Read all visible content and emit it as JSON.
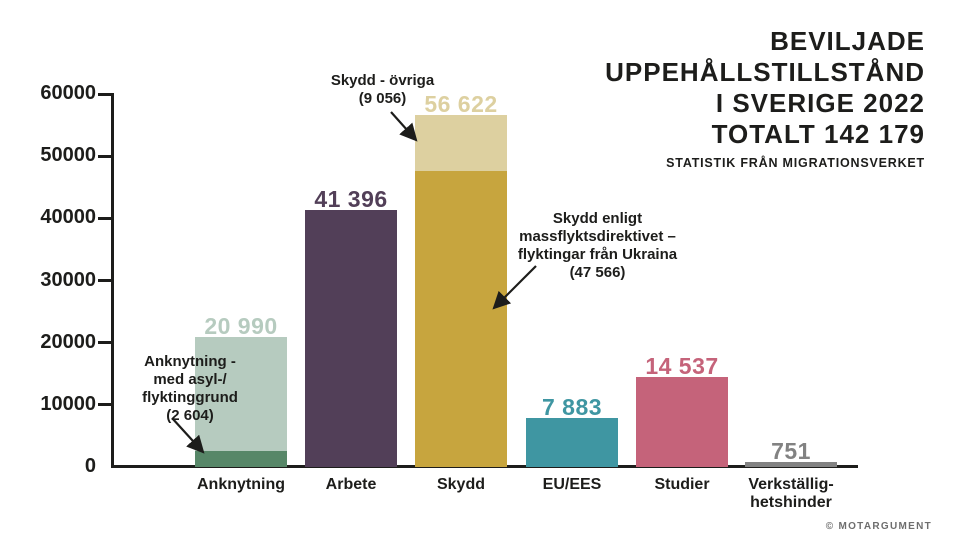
{
  "title": {
    "lines": [
      "BEVILJADE",
      "UPPEHÅLLSTILLSTÅND",
      "I SVERIGE 2022",
      "TOTALT 142 179"
    ],
    "subtitle": "STATISTIK FRÅN MIGRATIONSVERKET"
  },
  "credit": "© MOTARGUMENT",
  "colors": {
    "ink": "#1d1d1b",
    "sage": "#b6cbbf",
    "dark_green": "#578768",
    "purple": "#523f58",
    "tan": "#ddd0a0",
    "gold": "#c7a53e",
    "teal": "#3f96a2",
    "rose": "#c5637a",
    "gray": "#828282"
  },
  "chart_data": {
    "type": "bar",
    "title": "BEVILJADE UPPEHÅLLSTILLSTÅND I SVERIGE 2022 TOTALT 142 179",
    "source": "STATISTIK FRÅN MIGRATIONSVERKET",
    "total": 142179,
    "ylim": [
      0,
      60000
    ],
    "yticks": [
      0,
      10000,
      20000,
      30000,
      40000,
      50000,
      60000
    ],
    "ytick_labels": [
      "0",
      "10000",
      "20000",
      "30000",
      "40000",
      "50000",
      "60000"
    ],
    "grid": false,
    "legend": "none",
    "categories": [
      "Anknytning",
      "Arbete",
      "Skydd",
      "EU/EES",
      "Studier",
      "Verkställighetshinder"
    ],
    "values": [
      20990,
      41396,
      56622,
      7883,
      14537,
      751
    ],
    "bars": [
      {
        "category_lines": [
          "Anknytning"
        ],
        "value": 20990,
        "value_label": "20 990",
        "color": "#b6cbbf",
        "segment": {
          "value": 2604,
          "color": "#578768",
          "label": "Anknytning - med asyl-/flyktinggrund (2 604)"
        }
      },
      {
        "category_lines": [
          "Arbete"
        ],
        "value": 41396,
        "value_label": "41 396",
        "color": "#523f58"
      },
      {
        "category_lines": [
          "Skydd"
        ],
        "value": 56622,
        "value_label": "56 622",
        "color": "#ddd0a0",
        "segment": {
          "value": 47566,
          "color": "#c7a53e",
          "label": "Skydd enligt massflyktsdirektivet – flyktingar från Ukraina (47 566)"
        }
      },
      {
        "category_lines": [
          "EU/EES"
        ],
        "value": 7883,
        "value_label": "7 883",
        "color": "#3f96a2"
      },
      {
        "category_lines": [
          "Studier"
        ],
        "value": 14537,
        "value_label": "14 537",
        "color": "#c5637a"
      },
      {
        "category_lines": [
          "Verkställig-",
          "hetshinder"
        ],
        "value": 751,
        "value_label": "751",
        "color": "#828282"
      }
    ],
    "annotations": [
      {
        "target": "anknytning-asyl-segment",
        "lines": [
          "Anknytning -",
          "med asyl-/",
          "flyktinggrund",
          "(2 604)"
        ]
      },
      {
        "target": "skydd-ovriga-segment",
        "lines": [
          "Skydd - övriga",
          "(9 056)"
        ]
      },
      {
        "target": "skydd-ukraina-segment",
        "lines": [
          "Skydd enligt",
          "massflyktsdirektivet –",
          "flyktingar från Ukraina",
          "(47 566)"
        ]
      }
    ]
  }
}
